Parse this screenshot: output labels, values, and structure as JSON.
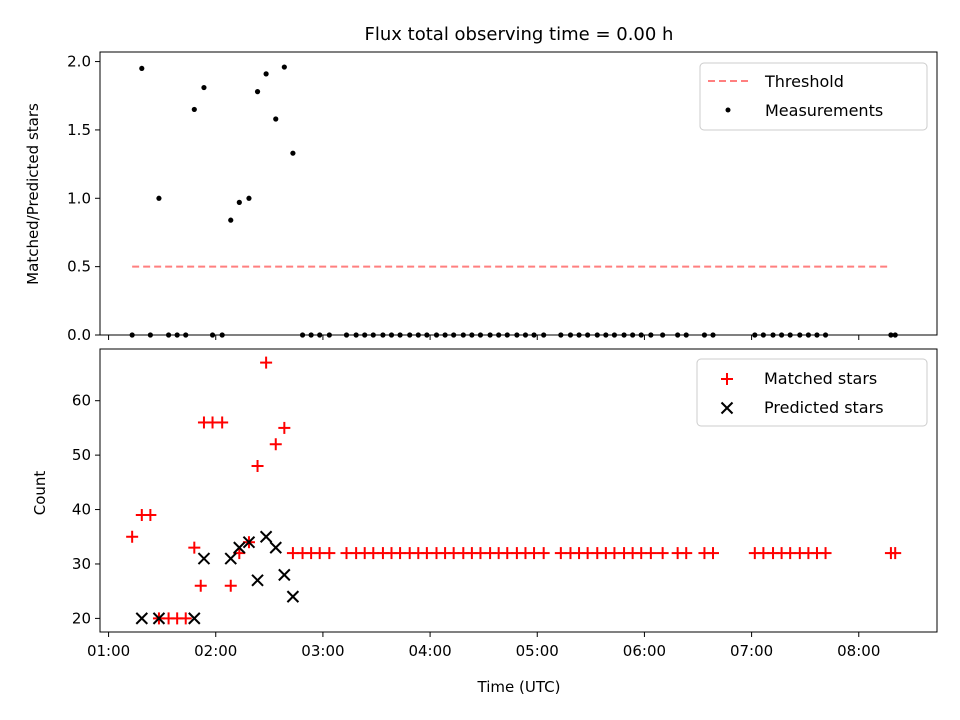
{
  "figure_title": "Flux total observing time = 0.00 h",
  "chart_data": [
    {
      "type": "scatter",
      "id": "ratio",
      "title": "Flux total observing time = 0.00 h",
      "xlabel": "",
      "ylabel": "Matched/Predicted stars",
      "xlim": [
        0.92,
        8.73
      ],
      "ylim": [
        0,
        2.07
      ],
      "yticks": [
        0.0,
        0.5,
        1.0,
        1.5,
        2.0
      ],
      "ytick_labels": [
        "0.0",
        "0.5",
        "1.0",
        "1.5",
        "2.0"
      ],
      "legend_position": "top-right",
      "threshold": {
        "name": "Threshold",
        "color": "#ff7f7f",
        "value": 0.5,
        "x_range": [
          1.22,
          8.3
        ]
      },
      "series": [
        {
          "name": "Measurements",
          "color": "#000000",
          "marker": "dot",
          "x": [
            1.22,
            1.31,
            1.39,
            1.47,
            1.56,
            1.64,
            1.72,
            1.8,
            1.89,
            1.97,
            2.06,
            2.14,
            2.22,
            2.31,
            2.39,
            2.47,
            2.56,
            2.64,
            2.72,
            2.81,
            2.89,
            2.97,
            3.06,
            3.22,
            3.31,
            3.39,
            3.47,
            3.56,
            3.64,
            3.72,
            3.81,
            3.89,
            3.97,
            4.06,
            4.14,
            4.22,
            4.31,
            4.39,
            4.47,
            4.56,
            4.64,
            4.72,
            4.81,
            4.89,
            4.97,
            5.06,
            5.22,
            5.31,
            5.39,
            5.47,
            5.56,
            5.64,
            5.72,
            5.81,
            5.89,
            5.97,
            6.06,
            6.17,
            6.31,
            6.39,
            6.56,
            6.64,
            7.03,
            7.11,
            7.2,
            7.28,
            7.36,
            7.45,
            7.53,
            7.61,
            7.69,
            8.3,
            8.34
          ],
          "y": [
            0,
            1.95,
            0,
            1.0,
            0,
            0,
            0,
            1.65,
            1.81,
            0,
            0,
            0.84,
            0.97,
            1.0,
            1.78,
            1.91,
            1.58,
            1.96,
            1.33,
            0,
            0,
            0,
            0,
            0,
            0,
            0,
            0,
            0,
            0,
            0,
            0,
            0,
            0,
            0,
            0,
            0,
            0,
            0,
            0,
            0,
            0,
            0,
            0,
            0,
            0,
            0,
            0,
            0,
            0,
            0,
            0,
            0,
            0,
            0,
            0,
            0,
            0,
            0,
            0,
            0,
            0,
            0,
            0,
            0,
            0,
            0,
            0,
            0,
            0,
            0,
            0,
            0,
            0
          ]
        }
      ]
    },
    {
      "type": "scatter",
      "id": "counts",
      "xlabel": "Time (UTC)",
      "ylabel": "Count",
      "xlim": [
        0.92,
        8.73
      ],
      "ylim": [
        17.5,
        69.5
      ],
      "xticks": [
        1,
        2,
        3,
        4,
        5,
        6,
        7,
        8
      ],
      "xtick_labels": [
        "01:00",
        "02:00",
        "03:00",
        "04:00",
        "05:00",
        "06:00",
        "07:00",
        "08:00"
      ],
      "yticks": [
        20,
        30,
        40,
        50,
        60
      ],
      "ytick_labels": [
        "20",
        "30",
        "40",
        "50",
        "60"
      ],
      "legend_position": "top-right",
      "series": [
        {
          "name": "Matched stars",
          "color": "#ff0000",
          "marker": "plus",
          "x": [
            1.22,
            1.31,
            1.39,
            1.47,
            1.56,
            1.64,
            1.72,
            1.8,
            1.86,
            1.89,
            1.97,
            2.06,
            2.14,
            2.22,
            2.31,
            2.39,
            2.47,
            2.56,
            2.64,
            2.72,
            2.81,
            2.89,
            2.97,
            3.06,
            3.22,
            3.31,
            3.39,
            3.47,
            3.56,
            3.64,
            3.72,
            3.81,
            3.89,
            3.97,
            4.06,
            4.14,
            4.22,
            4.31,
            4.39,
            4.47,
            4.56,
            4.64,
            4.72,
            4.81,
            4.89,
            4.97,
            5.06,
            5.22,
            5.31,
            5.39,
            5.47,
            5.56,
            5.64,
            5.72,
            5.81,
            5.89,
            5.97,
            6.06,
            6.17,
            6.31,
            6.39,
            6.56,
            6.64,
            7.03,
            7.11,
            7.2,
            7.28,
            7.36,
            7.45,
            7.53,
            7.61,
            7.69,
            8.3,
            8.34
          ],
          "y": [
            35,
            39,
            39,
            20,
            20,
            20,
            20,
            33,
            26,
            56,
            56,
            56,
            26,
            32,
            34,
            48,
            67,
            52,
            55,
            32,
            32,
            32,
            32,
            32,
            32,
            32,
            32,
            32,
            32,
            32,
            32,
            32,
            32,
            32,
            32,
            32,
            32,
            32,
            32,
            32,
            32,
            32,
            32,
            32,
            32,
            32,
            32,
            32,
            32,
            32,
            32,
            32,
            32,
            32,
            32,
            32,
            32,
            32,
            32,
            32,
            32,
            32,
            32,
            32,
            32,
            32,
            32,
            32,
            32,
            32,
            32,
            32,
            32,
            32
          ]
        },
        {
          "name": "Predicted stars",
          "color": "#000000",
          "marker": "x",
          "x": [
            1.31,
            1.47,
            1.8,
            1.89,
            2.14,
            2.22,
            2.31,
            2.39,
            2.47,
            2.56,
            2.64,
            2.72
          ],
          "y": [
            20,
            20,
            20,
            31,
            31,
            33,
            34,
            27,
            35,
            33,
            28,
            24
          ]
        }
      ]
    }
  ]
}
